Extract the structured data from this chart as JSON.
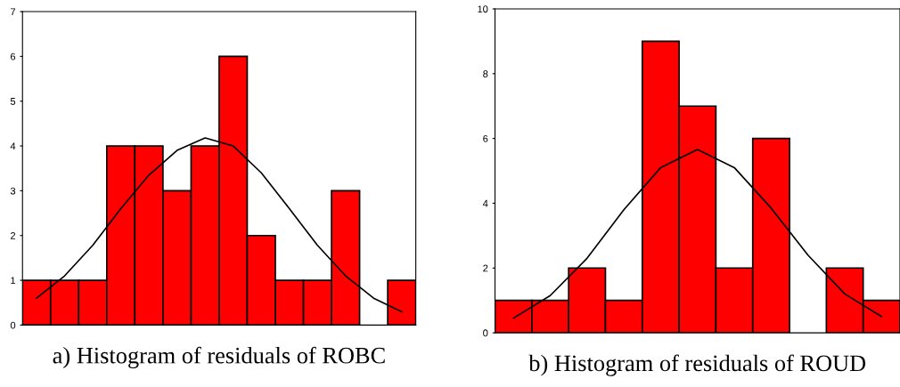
{
  "chart_data": [
    {
      "type": "bar",
      "xlabel": "a) Histogram of residuals of ROBC",
      "categories": [
        null,
        null,
        null,
        null,
        null,
        null,
        null,
        null,
        null,
        null,
        null,
        null,
        null,
        null
      ],
      "ylim": [
        0,
        7
      ],
      "yticks": [
        0,
        1,
        2,
        3,
        4,
        5,
        6,
        7
      ],
      "grid": false,
      "series": [
        {
          "color": "#ff0000",
          "values": [
            1,
            1,
            1,
            4,
            4,
            3,
            4,
            6,
            2,
            1,
            1,
            3,
            0,
            1
          ]
        },
        {
          "type": "line",
          "color": "#000000",
          "values": [
            0.6,
            1.1,
            1.78,
            2.6,
            3.35,
            3.9,
            4.18,
            4.0,
            3.4,
            2.6,
            1.78,
            1.1,
            0.6,
            0.3
          ]
        }
      ]
    },
    {
      "type": "bar",
      "xlabel": "b) Histogram of residuals of ROUD",
      "categories": [
        null,
        null,
        null,
        null,
        null,
        null,
        null,
        null,
        null,
        null,
        null
      ],
      "ylim": [
        0,
        10
      ],
      "yticks": [
        0,
        2,
        4,
        6,
        8,
        10
      ],
      "grid": false,
      "series": [
        {
          "color": "#ff0000",
          "values": [
            1,
            1,
            2,
            1,
            9,
            7,
            2,
            6,
            0,
            2,
            1
          ]
        },
        {
          "type": "line",
          "color": "#000000",
          "values": [
            0.45,
            1.15,
            2.3,
            3.8,
            5.1,
            5.66,
            5.1,
            3.85,
            2.4,
            1.2,
            0.5
          ]
        }
      ]
    }
  ]
}
